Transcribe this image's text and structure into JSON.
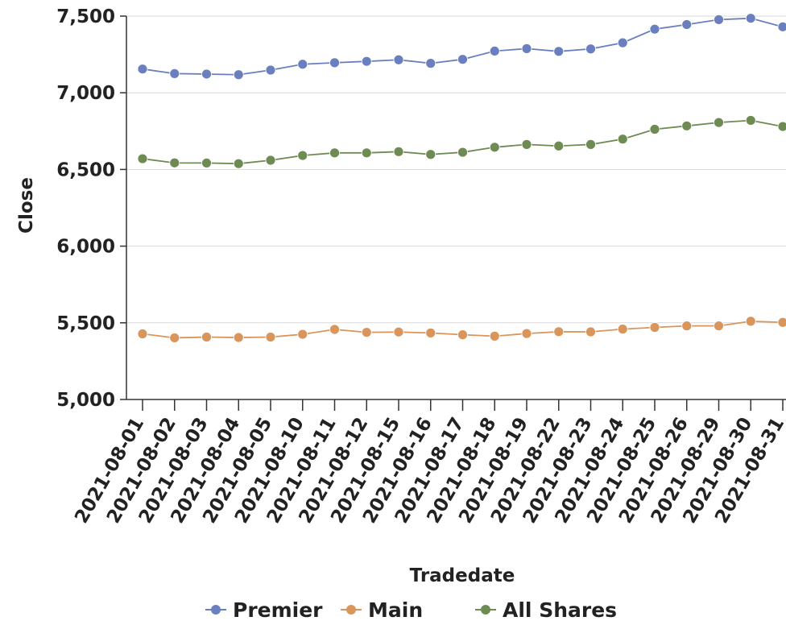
{
  "chart_data": {
    "type": "line",
    "title": "",
    "xlabel": "Tradedate",
    "ylabel": "Close",
    "ylim": [
      5000,
      7500
    ],
    "yticks": [
      5000,
      5500,
      6000,
      6500,
      7000,
      7500
    ],
    "ytick_labels": [
      "5,000",
      "5,500",
      "6,000",
      "6,500",
      "7,000",
      "7,500"
    ],
    "grid": "horizontal",
    "legend_position": "bottom",
    "categories": [
      "2021-08-01",
      "2021-08-02",
      "2021-08-03",
      "2021-08-04",
      "2021-08-05",
      "2021-08-10",
      "2021-08-11",
      "2021-08-12",
      "2021-08-15",
      "2021-08-16",
      "2021-08-17",
      "2021-08-18",
      "2021-08-19",
      "2021-08-22",
      "2021-08-23",
      "2021-08-24",
      "2021-08-25",
      "2021-08-26",
      "2021-08-29",
      "2021-08-30",
      "2021-08-31"
    ],
    "series": [
      {
        "name": "Premier",
        "color": "#6a7fbf",
        "values": [
          7155,
          7125,
          7122,
          7118,
          7148,
          7186,
          7196,
          7205,
          7215,
          7192,
          7218,
          7272,
          7288,
          7270,
          7286,
          7326,
          7415,
          7445,
          7477,
          7486,
          7430
        ]
      },
      {
        "name": "Main",
        "color": "#d9955a",
        "values": [
          5428,
          5402,
          5407,
          5404,
          5407,
          5425,
          5457,
          5438,
          5440,
          5434,
          5422,
          5413,
          5430,
          5442,
          5441,
          5459,
          5470,
          5480,
          5480,
          5510,
          5503
        ]
      },
      {
        "name": "All Shares",
        "color": "#6d8b52",
        "values": [
          6570,
          6543,
          6542,
          6538,
          6560,
          6591,
          6608,
          6608,
          6616,
          6598,
          6612,
          6645,
          6663,
          6653,
          6663,
          6698,
          6762,
          6784,
          6806,
          6820,
          6780
        ]
      }
    ]
  }
}
